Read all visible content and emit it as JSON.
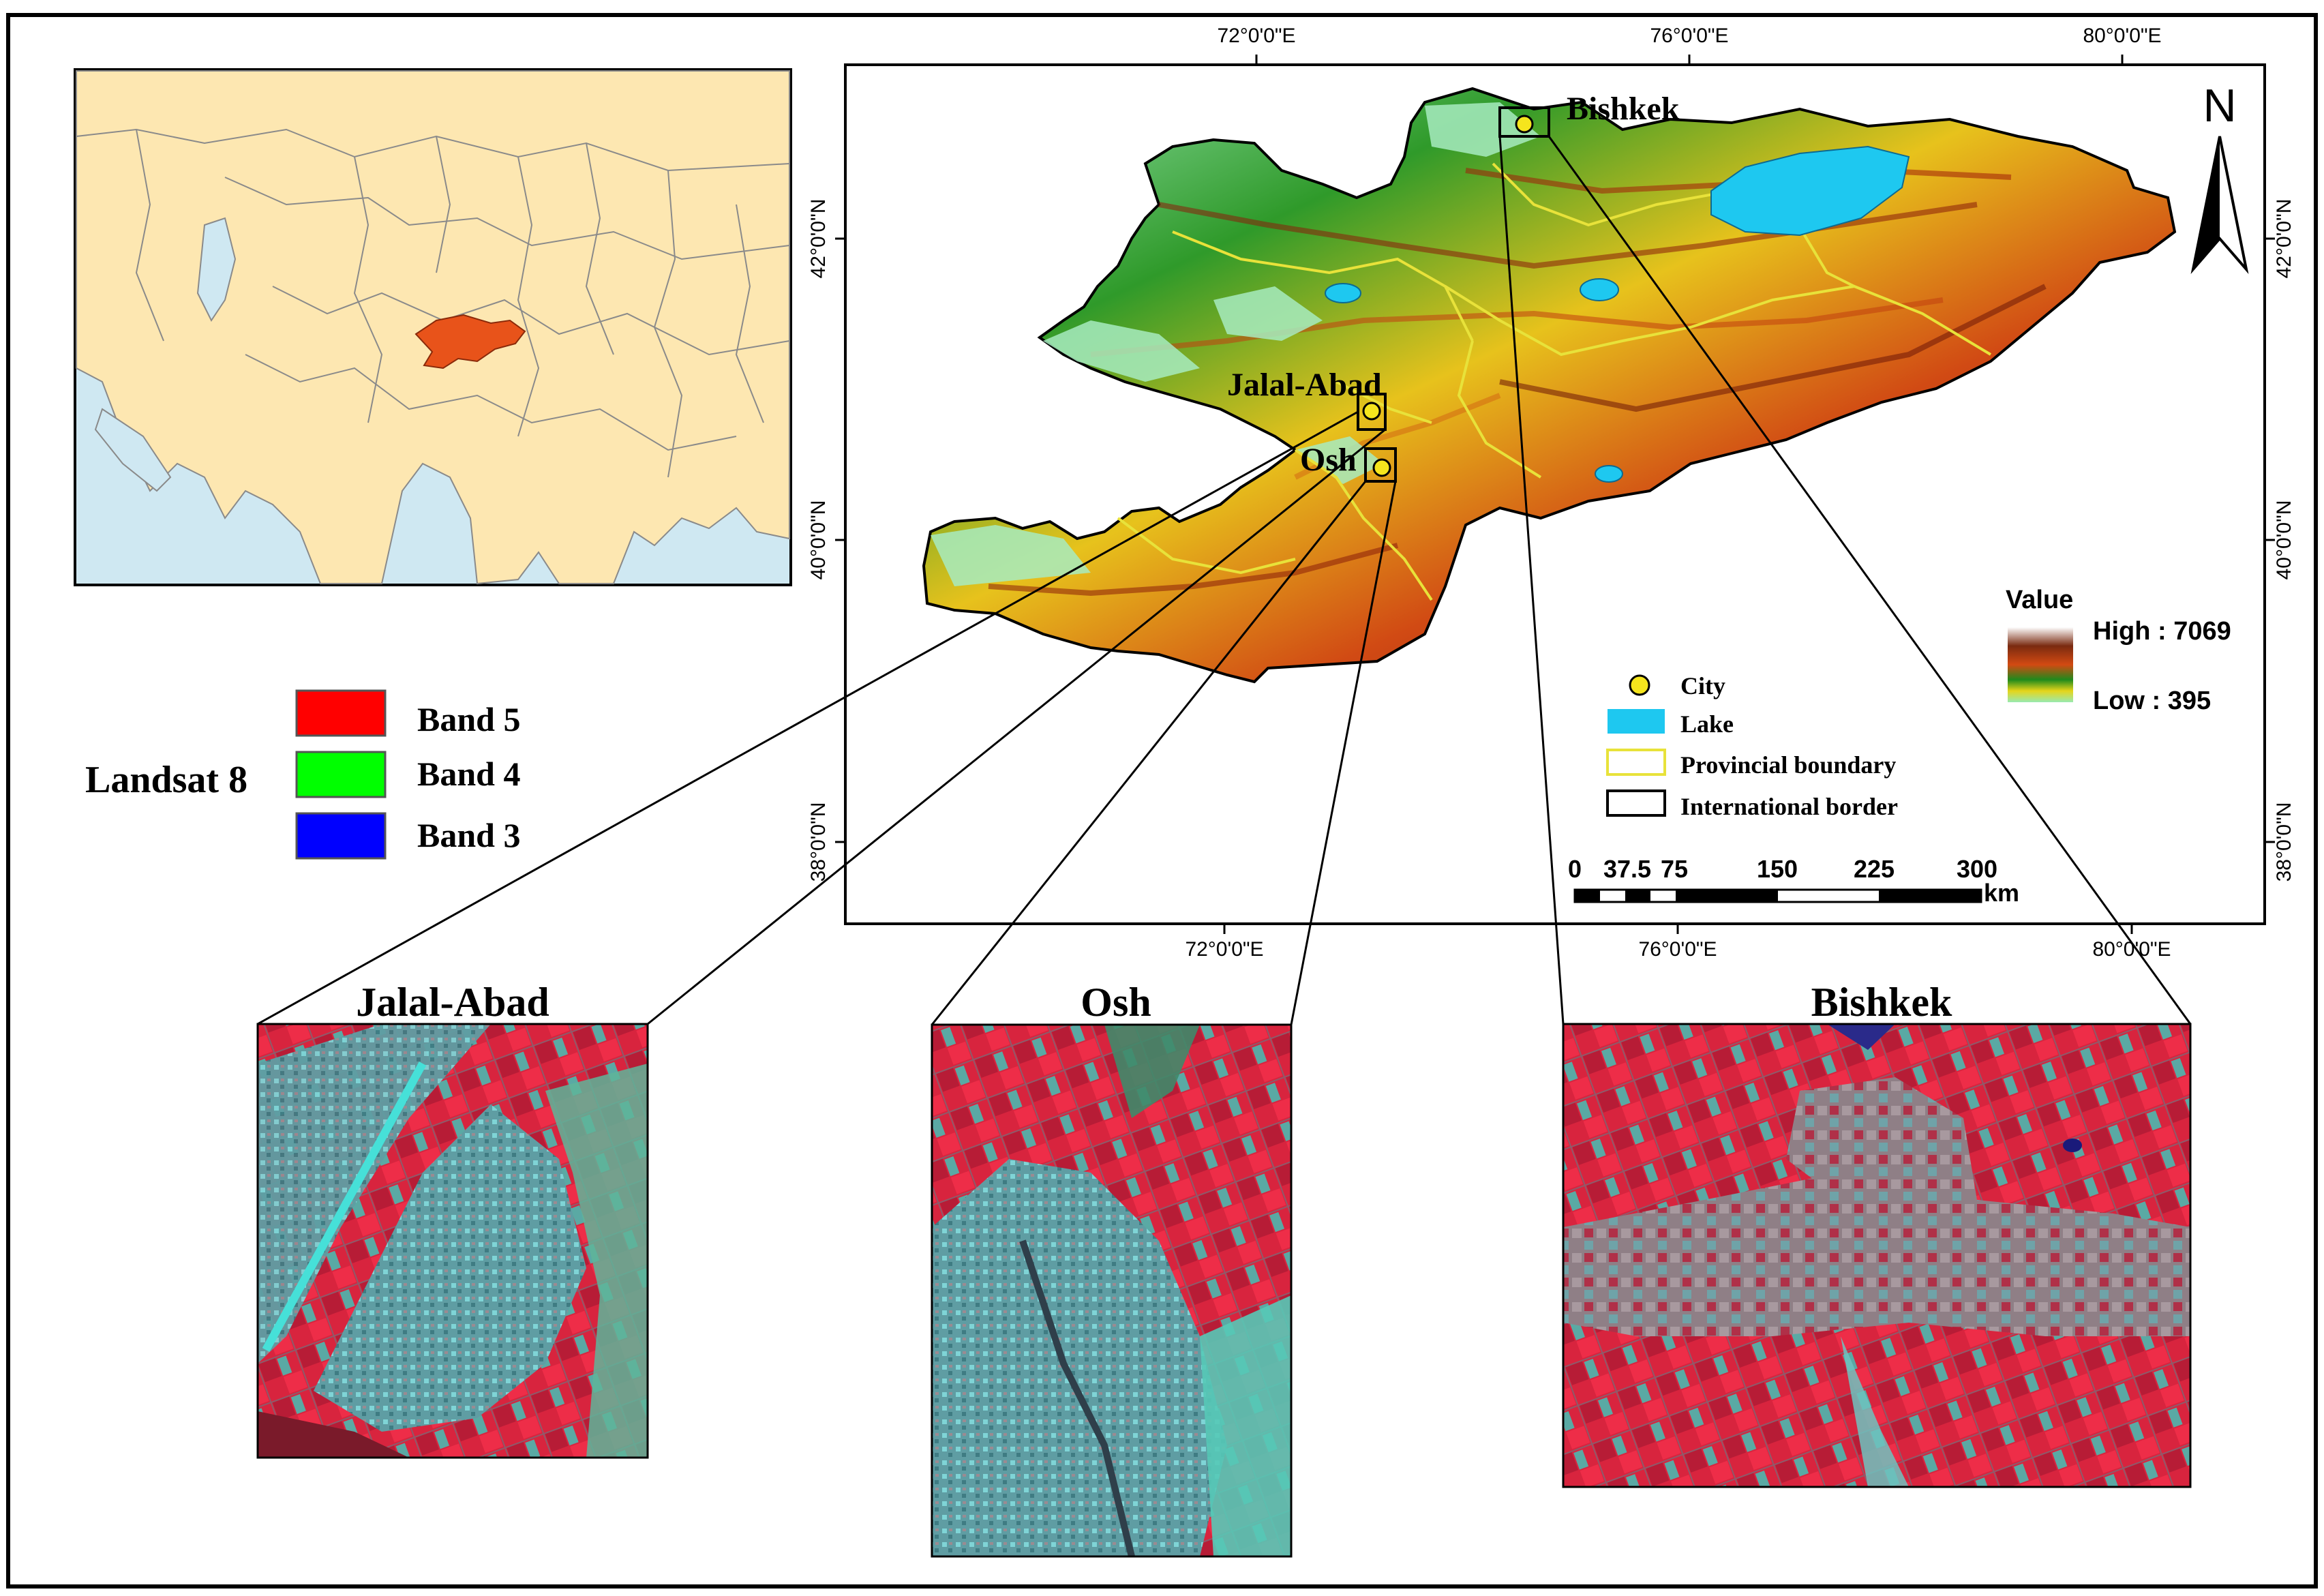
{
  "study_area_map": {
    "coordinates": {
      "top": [
        "72°0'0\"E",
        "76°0'0\"E",
        "80°0'0\"E"
      ],
      "bottom": [
        "72°0'0\"E",
        "76°0'0\"E",
        "80°0'0\"E"
      ],
      "left": [
        "42°0'0\"N",
        "40°0'0\"N",
        "38°0'0\"N"
      ],
      "right": [
        "42°0'0\"N",
        "40°0'0\"N",
        "38°0'0\"N"
      ]
    },
    "cities": [
      "Bishkek",
      "Jalal-Abad",
      "Osh"
    ],
    "north_arrow": "N",
    "legend": {
      "city": "City",
      "lake": "Lake",
      "provincial": "Provincial boundary",
      "international": "International border"
    },
    "elevation": {
      "title": "Value",
      "high": "High : 7069",
      "low": "Low : 395"
    },
    "scale_bar": {
      "ticks": [
        "0",
        "37.5",
        "75",
        "150",
        "225",
        "300"
      ],
      "unit": "km"
    }
  },
  "landsat": {
    "title": "Landsat 8",
    "bands": [
      {
        "label": "Band 5",
        "color": "#ff0000"
      },
      {
        "label": "Band 4",
        "color": "#00ff00"
      },
      {
        "label": "Band 3",
        "color": "#0000ff"
      }
    ]
  },
  "panels": [
    {
      "title": "Jalal-Abad"
    },
    {
      "title": "Osh"
    },
    {
      "title": "Bishkek"
    }
  ],
  "colors": {
    "highlight_country": "#e8531a",
    "overview_land": "#fde7b1",
    "lake": "#1ec8f0",
    "provincial": "#e8e23a",
    "city": "#f5e51d"
  }
}
